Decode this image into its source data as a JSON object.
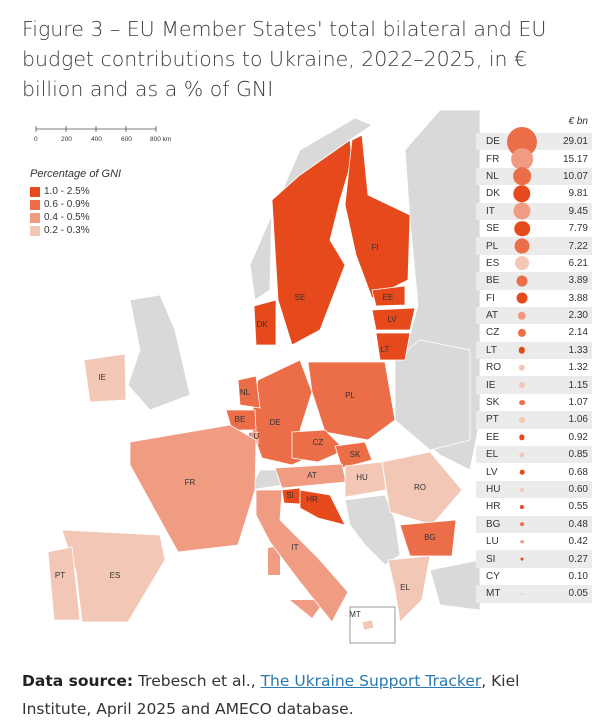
{
  "title": "Figure 3 – EU Member States' total bilateral and EU budget contributions to Ukraine, 2022–2025, in € billion and as a % of GNI",
  "scale_bar": {
    "ticks": [
      "0",
      "200",
      "400",
      "600",
      "800 km"
    ]
  },
  "legend": {
    "title": "Percentage of GNI",
    "items": [
      {
        "label": "1.0 - 2.5%",
        "color": "#e64a1c"
      },
      {
        "label": "0.6 - 0.9%",
        "color": "#ec6e48"
      },
      {
        "label": "0.4 - 0.5%",
        "color": "#f09c83"
      },
      {
        "label": "0.2 - 0.3%",
        "color": "#f3c7b6"
      }
    ]
  },
  "colors": {
    "non_eu": "#d9d9d9",
    "water": "#ffffff",
    "cy": "#f7ece7"
  },
  "table": {
    "unit": "€ bn",
    "rows": [
      {
        "code": "DE",
        "value": "29.01",
        "gni": 1
      },
      {
        "code": "FR",
        "value": "15.17",
        "gni": 2
      },
      {
        "code": "NL",
        "value": "10.07",
        "gni": 1
      },
      {
        "code": "DK",
        "value": "9.81",
        "gni": 0
      },
      {
        "code": "IT",
        "value": "9.45",
        "gni": 2
      },
      {
        "code": "SE",
        "value": "7.79",
        "gni": 0
      },
      {
        "code": "PL",
        "value": "7.22",
        "gni": 1
      },
      {
        "code": "ES",
        "value": "6.21",
        "gni": 3
      },
      {
        "code": "BE",
        "value": "3.89",
        "gni": 1
      },
      {
        "code": "FI",
        "value": "3.88",
        "gni": 0
      },
      {
        "code": "AT",
        "value": "2.30",
        "gni": 2
      },
      {
        "code": "CZ",
        "value": "2.14",
        "gni": 1
      },
      {
        "code": "LT",
        "value": "1.33",
        "gni": 0
      },
      {
        "code": "RO",
        "value": "1.32",
        "gni": 3
      },
      {
        "code": "IE",
        "value": "1.15",
        "gni": 3
      },
      {
        "code": "SK",
        "value": "1.07",
        "gni": 1
      },
      {
        "code": "PT",
        "value": "1.06",
        "gni": 3
      },
      {
        "code": "EE",
        "value": "0.92",
        "gni": 0
      },
      {
        "code": "EL",
        "value": "0.85",
        "gni": 3
      },
      {
        "code": "LV",
        "value": "0.68",
        "gni": 0
      },
      {
        "code": "HU",
        "value": "0.60",
        "gni": 3
      },
      {
        "code": "HR",
        "value": "0.55",
        "gni": 0
      },
      {
        "code": "BG",
        "value": "0.48",
        "gni": 1
      },
      {
        "code": "LU",
        "value": "0.42",
        "gni": 2
      },
      {
        "code": "SI",
        "value": "0.27",
        "gni": 0
      },
      {
        "code": "CY",
        "value": "0.10",
        "gni": 4
      },
      {
        "code": "MT",
        "value": "0.05",
        "gni": 3
      }
    ]
  },
  "map_labels": {
    "SE": "SE",
    "FI": "FI",
    "EE": "EE",
    "LV": "LV",
    "LT": "LT",
    "DK": "DK",
    "DE": "DE",
    "NL": "NL",
    "BE": "BE",
    "LU": "LU",
    "PL": "PL",
    "CZ": "CZ",
    "SK": "SK",
    "AT": "AT",
    "HU": "HU",
    "SI": "SI",
    "HR": "HR",
    "RO": "RO",
    "BG": "BG",
    "EL": "EL",
    "FR": "FR",
    "ES": "ES",
    "PT": "PT",
    "IT": "IT",
    "IE": "IE",
    "CY": "CY",
    "MT": "MT"
  },
  "source": {
    "label": "Data source:",
    "text_before": " Trebesch et al., ",
    "link": "The Ukraine Support Tracker",
    "text_after": ", Kiel Institute, April 2025 and AMECO database."
  }
}
